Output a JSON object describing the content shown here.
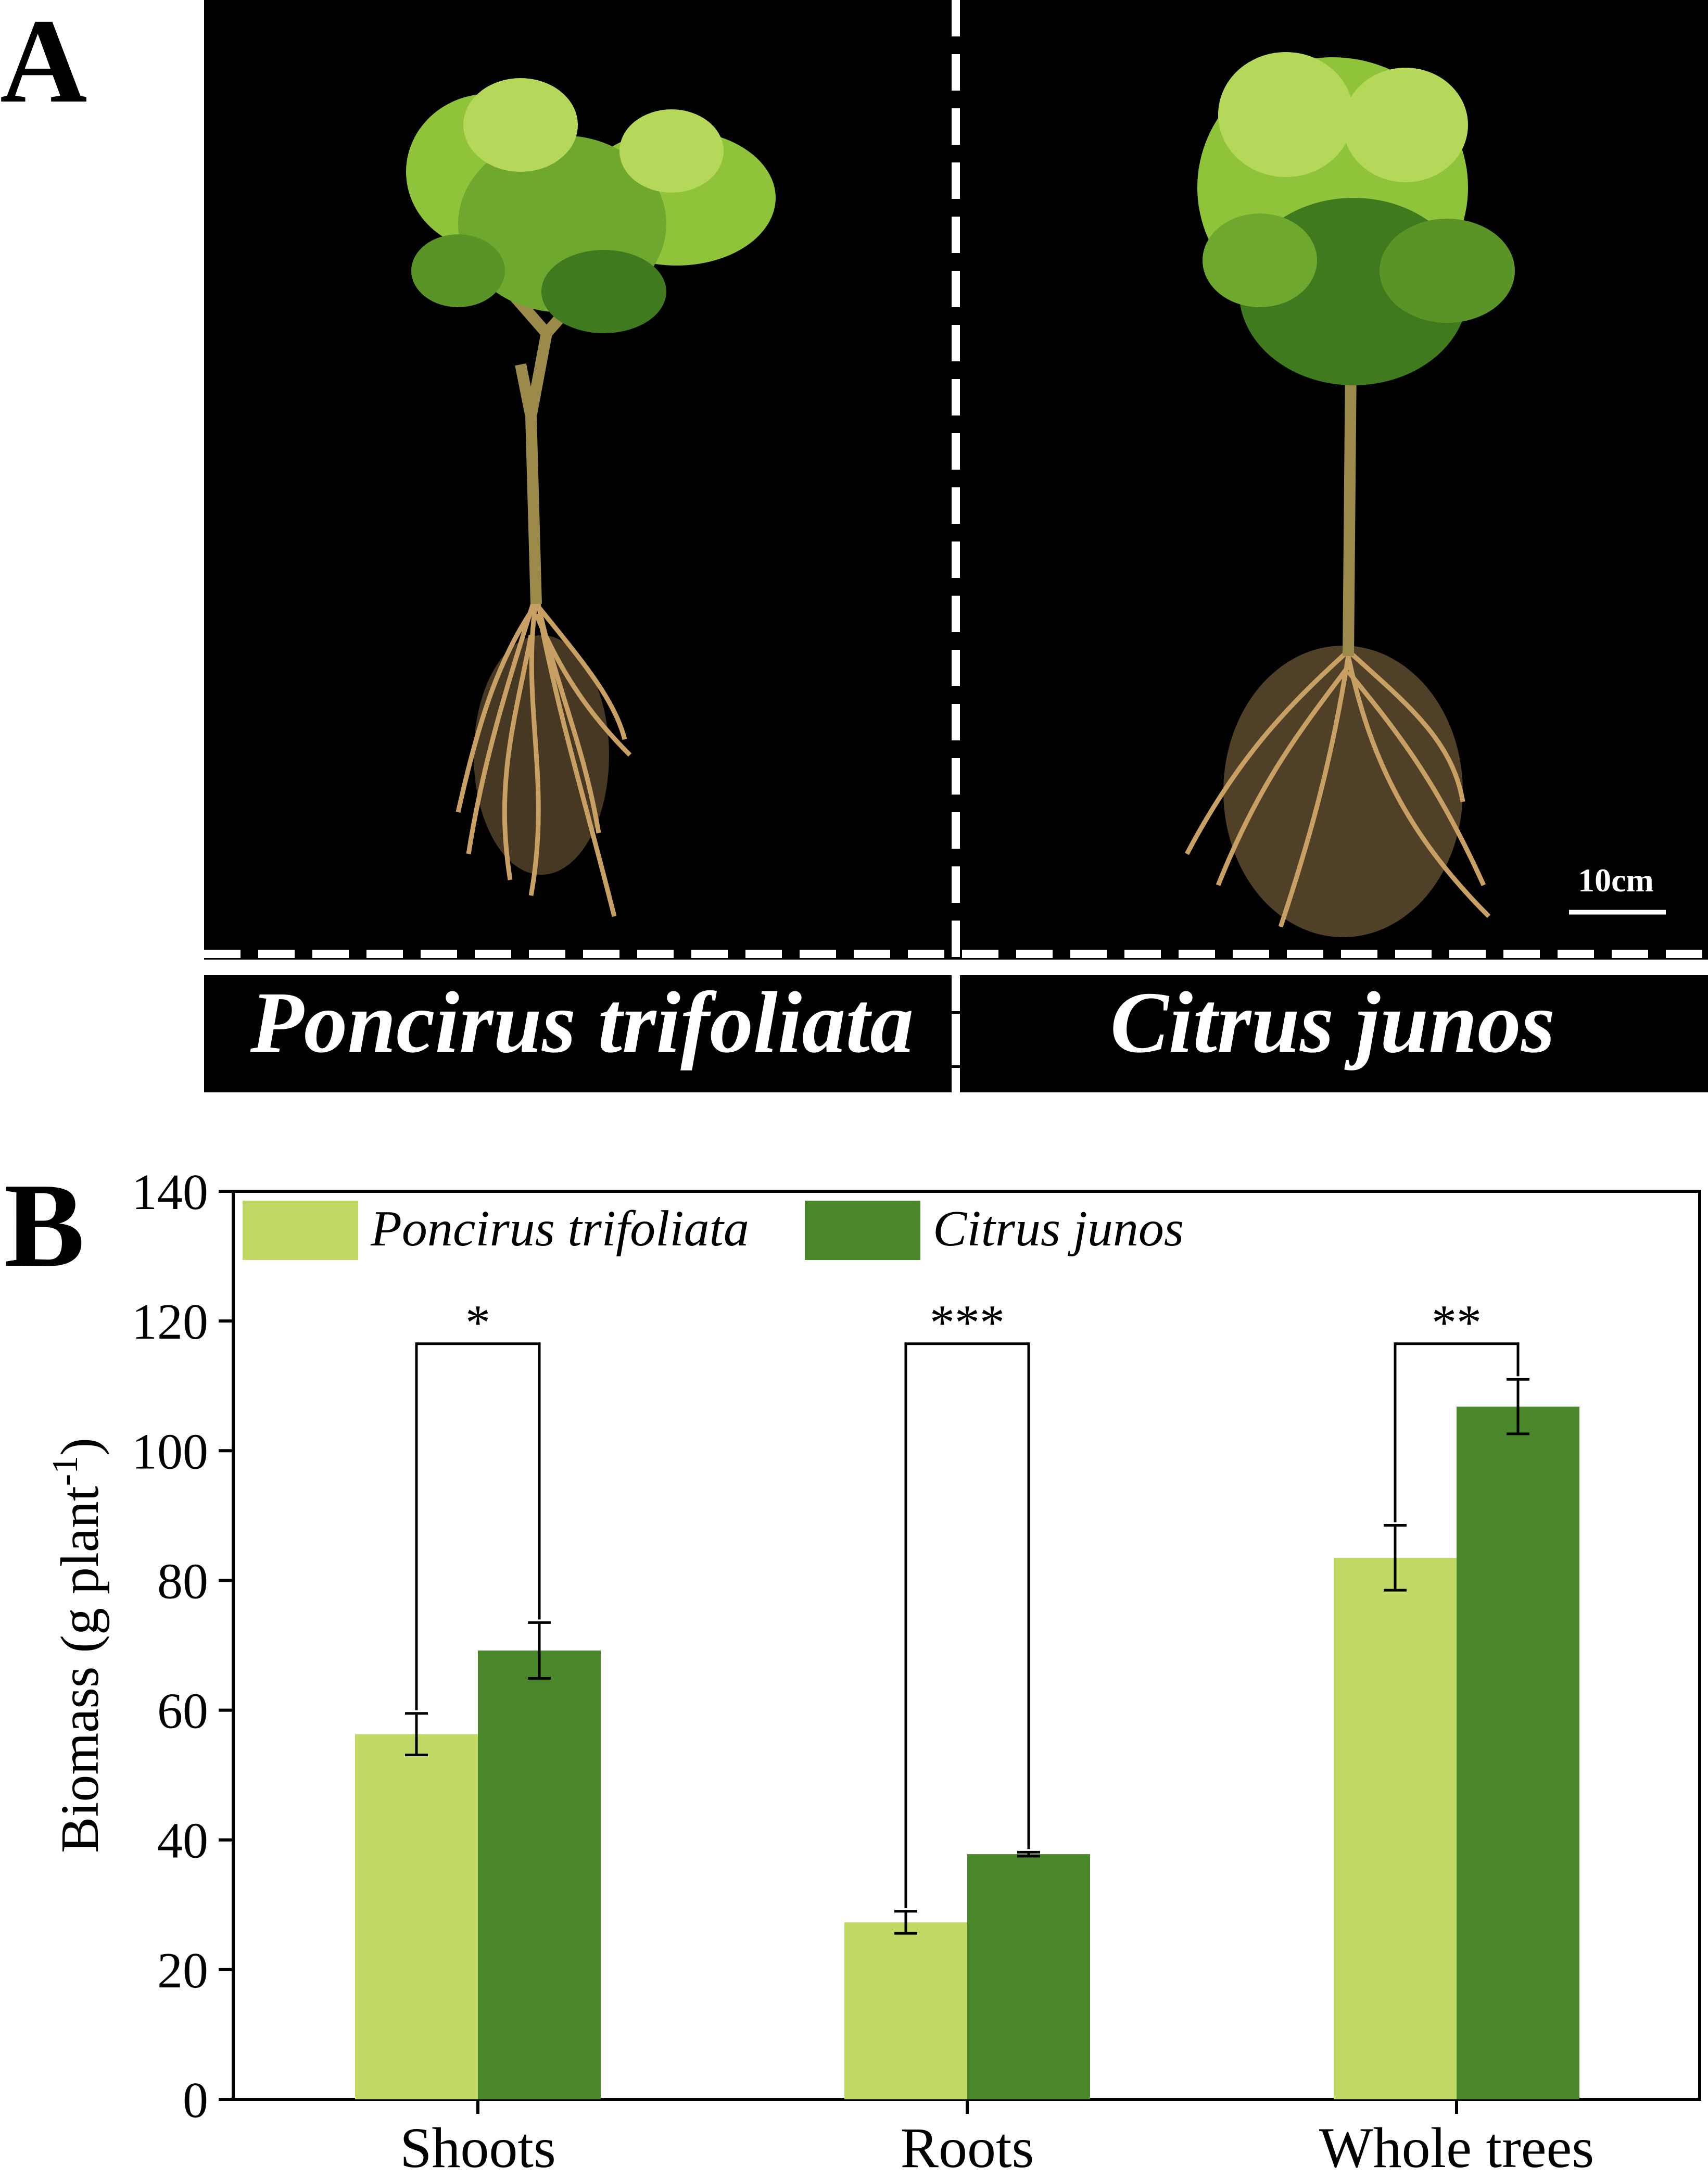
{
  "panel_a": {
    "letter": "A",
    "left_species": "Poncirus trifoliata",
    "right_species": "Citrus junos",
    "scale_bar": "10cm",
    "colors": {
      "background": "#000000",
      "leaf": "#8fc43a",
      "leaf_dark": "#3f7a1e",
      "stem": "#9b8a4a",
      "root": "#c9a064"
    }
  },
  "panel_b": {
    "letter": "B"
  },
  "colors": {
    "poncirus": "#c2d965",
    "citrus": "#4a872b"
  },
  "chart_data": {
    "type": "bar",
    "categories": [
      "Shoots",
      "Roots",
      "Whole trees"
    ],
    "series": [
      {
        "name": "Poncirus trifoliata",
        "values": [
          56.3,
          27.3,
          83.5
        ],
        "errors": [
          3.2,
          1.7,
          5.0
        ]
      },
      {
        "name": "Citrus junos",
        "values": [
          69.2,
          37.8,
          106.8
        ],
        "errors": [
          4.3,
          0.3,
          4.2
        ]
      }
    ],
    "significance": [
      "*",
      "***",
      "**"
    ],
    "ylabel": "Biomass (g plant",
    "ylabel_superscript": "-1",
    "ylabel_close": ")",
    "ylim": [
      0,
      140
    ],
    "yticks": [
      "0",
      "20",
      "40",
      "60",
      "80",
      "100",
      "120",
      "140"
    ],
    "legend_position": "top-left",
    "grid": false
  }
}
